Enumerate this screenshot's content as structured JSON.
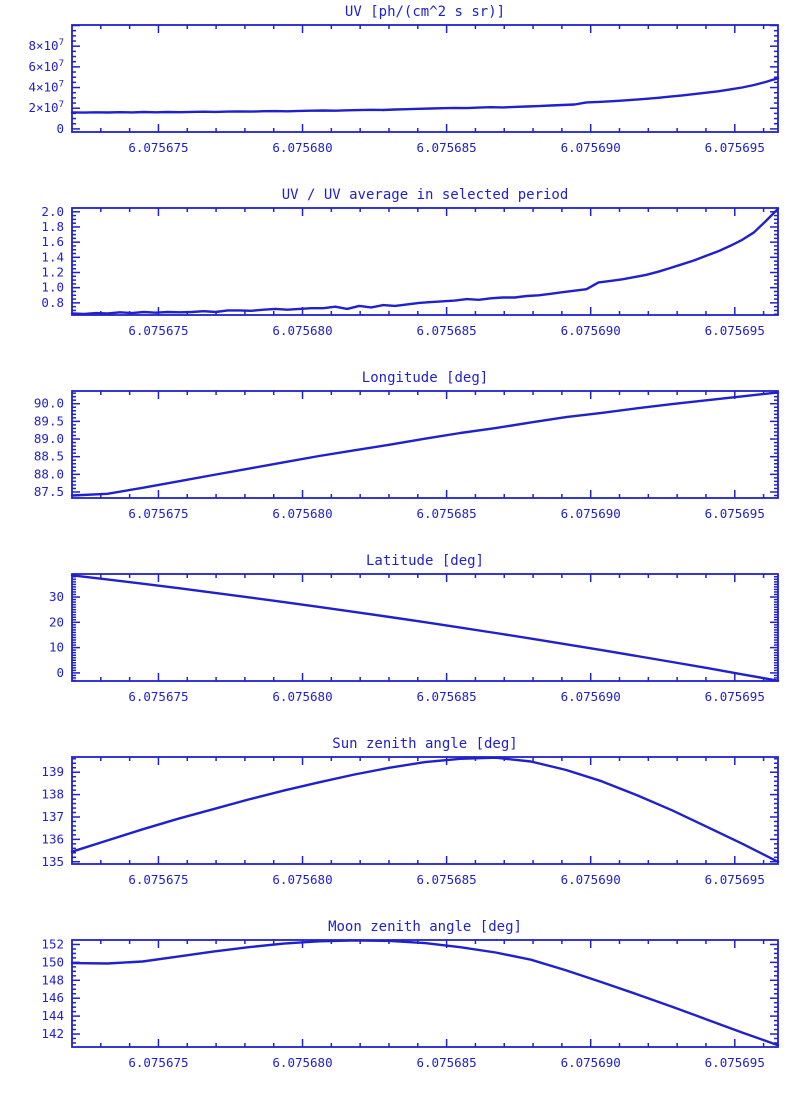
{
  "page": {
    "background": "#ffffff",
    "accent_color": "#2121cc"
  },
  "chart_data": [
    {
      "type": "line",
      "title": "UV [ph/(cm^2 s sr)]",
      "xlabel": "",
      "ylabel": "",
      "grid": false,
      "legend": "none",
      "xlim": [
        6.075672,
        6.0756965
      ],
      "ylim": [
        -3000000,
        100500000
      ],
      "x_ticks": {
        "values": [
          6.075675,
          6.07568,
          6.075685,
          6.07569,
          6.075695
        ],
        "labels": [
          "6.075675",
          "6.075680",
          "6.075685",
          "6.075690",
          "6.075695"
        ]
      },
      "x_minor_step": 1e-06,
      "y_ticks": [
        {
          "v": 0,
          "label": "0"
        },
        {
          "v": 20000000,
          "label": "2×10",
          "sup": "7"
        },
        {
          "v": 40000000,
          "label": "4×10",
          "sup": "7"
        },
        {
          "v": 60000000,
          "label": "6×10",
          "sup": "7"
        },
        {
          "v": 80000000,
          "label": "8×10",
          "sup": "7"
        },
        {
          "v": 100000000,
          "label": ""
        }
      ],
      "y_minor_step": 5000000,
      "line_color": "#2121cc",
      "y_scale": 10000000,
      "y_values": [
        1.6,
        1.58,
        1.61,
        1.59,
        1.62,
        1.6,
        1.63,
        1.61,
        1.63,
        1.62,
        1.64,
        1.66,
        1.64,
        1.67,
        1.69,
        1.67,
        1.71,
        1.72,
        1.7,
        1.74,
        1.76,
        1.78,
        1.76,
        1.8,
        1.82,
        1.85,
        1.83,
        1.88,
        1.91,
        1.94,
        1.97,
        2.0,
        2.03,
        2.01,
        2.06,
        2.1,
        2.08,
        2.13,
        2.17,
        2.21,
        2.26,
        2.31,
        2.36,
        2.56,
        2.61,
        2.67,
        2.74,
        2.82,
        2.91,
        3.01,
        3.12,
        3.24,
        3.37,
        3.5,
        3.64,
        3.82,
        4.0,
        4.25,
        4.55,
        4.9
      ]
    },
    {
      "type": "line",
      "title": "UV / UV average in selected period",
      "xlabel": "",
      "ylabel": "",
      "grid": false,
      "legend": "none",
      "xlim": [
        6.075672,
        6.0756965
      ],
      "ylim": [
        0.64,
        2.05
      ],
      "x_ticks": {
        "values": [
          6.075675,
          6.07568,
          6.075685,
          6.07569,
          6.075695
        ],
        "labels": [
          "6.075675",
          "6.075680",
          "6.075685",
          "6.075690",
          "6.075695"
        ]
      },
      "x_minor_step": 1e-06,
      "y_ticks": [
        {
          "v": 0.8,
          "label": "0.8"
        },
        {
          "v": 1.0,
          "label": "1.0"
        },
        {
          "v": 1.2,
          "label": "1.2"
        },
        {
          "v": 1.4,
          "label": "1.4"
        },
        {
          "v": 1.6,
          "label": "1.6"
        },
        {
          "v": 1.8,
          "label": "1.8"
        },
        {
          "v": 2.0,
          "label": "2.0"
        }
      ],
      "y_minor_step": 0.05,
      "line_color": "#2121cc",
      "y_scale": 1,
      "y_values": [
        0.66,
        0.655,
        0.665,
        0.66,
        0.675,
        0.665,
        0.68,
        0.67,
        0.68,
        0.675,
        0.68,
        0.69,
        0.68,
        0.7,
        0.7,
        0.695,
        0.71,
        0.72,
        0.71,
        0.72,
        0.73,
        0.73,
        0.75,
        0.72,
        0.76,
        0.74,
        0.77,
        0.76,
        0.78,
        0.8,
        0.81,
        0.82,
        0.83,
        0.85,
        0.84,
        0.86,
        0.87,
        0.87,
        0.89,
        0.9,
        0.92,
        0.94,
        0.96,
        0.98,
        1.07,
        1.09,
        1.11,
        1.14,
        1.17,
        1.21,
        1.26,
        1.31,
        1.36,
        1.42,
        1.48,
        1.55,
        1.63,
        1.73,
        1.88,
        2.04
      ]
    },
    {
      "type": "line",
      "title": "Longitude [deg]",
      "xlabel": "",
      "ylabel": "",
      "grid": false,
      "legend": "none",
      "xlim": [
        6.075672,
        6.0756965
      ],
      "ylim": [
        87.33,
        90.36
      ],
      "x_ticks": {
        "values": [
          6.075675,
          6.07568,
          6.075685,
          6.07569,
          6.075695
        ],
        "labels": [
          "6.075675",
          "6.075680",
          "6.075685",
          "6.075690",
          "6.075695"
        ]
      },
      "x_minor_step": 1e-06,
      "y_ticks": [
        {
          "v": 87.5,
          "label": "87.5"
        },
        {
          "v": 88.0,
          "label": "88.0"
        },
        {
          "v": 88.5,
          "label": "88.5"
        },
        {
          "v": 89.0,
          "label": "89.0"
        },
        {
          "v": 89.5,
          "label": "89.5"
        },
        {
          "v": 90.0,
          "label": "90.0"
        }
      ],
      "y_minor_step": 0.1,
      "line_color": "#2121cc",
      "y_scale": 1,
      "y_values": [
        87.4,
        87.45,
        87.62,
        87.8,
        87.98,
        88.16,
        88.34,
        88.52,
        88.68,
        88.84,
        89.01,
        89.17,
        89.31,
        89.47,
        89.62,
        89.74,
        89.87,
        89.99,
        90.1,
        90.21,
        90.32
      ]
    },
    {
      "type": "line",
      "title": "Latitude [deg]",
      "xlabel": "",
      "ylabel": "",
      "grid": false,
      "legend": "none",
      "xlim": [
        6.075672,
        6.0756965
      ],
      "ylim": [
        -3.2,
        39.1
      ],
      "x_ticks": {
        "values": [
          6.075675,
          6.07568,
          6.075685,
          6.07569,
          6.075695
        ],
        "labels": [
          "6.075675",
          "6.075680",
          "6.075685",
          "6.075690",
          "6.075695"
        ]
      },
      "x_minor_step": 1e-06,
      "y_ticks": [
        {
          "v": 0,
          "label": "0"
        },
        {
          "v": 10,
          "label": "10"
        },
        {
          "v": 20,
          "label": "20"
        },
        {
          "v": 30,
          "label": "30"
        }
      ],
      "y_minor_step": 1,
      "line_color": "#2121cc",
      "y_scale": 1,
      "y_values": [
        38.6,
        36.95,
        35.25,
        33.51,
        31.72,
        29.88,
        28.0,
        26.08,
        24.1,
        22.09,
        20.03,
        17.92,
        15.76,
        13.57,
        11.32,
        9.03,
        6.7,
        4.31,
        1.89,
        -0.58,
        -3.1
      ]
    },
    {
      "type": "line",
      "title": "Sun zenith angle [deg]",
      "xlabel": "",
      "ylabel": "",
      "grid": false,
      "legend": "none",
      "xlim": [
        6.075672,
        6.0756965
      ],
      "ylim": [
        134.9,
        139.68
      ],
      "x_ticks": {
        "values": [
          6.075675,
          6.07568,
          6.075685,
          6.07569,
          6.075695
        ],
        "labels": [
          "6.075675",
          "6.075680",
          "6.075685",
          "6.075690",
          "6.075695"
        ]
      },
      "x_minor_step": 1e-06,
      "y_ticks": [
        {
          "v": 135,
          "label": "135"
        },
        {
          "v": 136,
          "label": "136"
        },
        {
          "v": 137,
          "label": "137"
        },
        {
          "v": 138,
          "label": "138"
        },
        {
          "v": 139,
          "label": "139"
        }
      ],
      "y_minor_step": 0.2,
      "line_color": "#2121cc",
      "y_scale": 1,
      "y_values": [
        135.45,
        135.95,
        136.45,
        136.92,
        137.35,
        137.78,
        138.18,
        138.55,
        138.9,
        139.2,
        139.45,
        139.6,
        139.65,
        139.48,
        139.1,
        138.6,
        137.98,
        137.3,
        136.55,
        135.8,
        135.0
      ]
    },
    {
      "type": "line",
      "title": "Moon zenith angle [deg]",
      "xlabel": "",
      "ylabel": "",
      "grid": false,
      "legend": "none",
      "xlim": [
        6.075672,
        6.0756965
      ],
      "ylim": [
        140.55,
        152.5
      ],
      "x_ticks": {
        "values": [
          6.075675,
          6.07568,
          6.075685,
          6.07569,
          6.075695
        ],
        "labels": [
          "6.075675",
          "6.075680",
          "6.075685",
          "6.075690",
          "6.075695"
        ]
      },
      "x_minor_step": 1e-06,
      "y_ticks": [
        {
          "v": 142,
          "label": "142"
        },
        {
          "v": 144,
          "label": "144"
        },
        {
          "v": 146,
          "label": "146"
        },
        {
          "v": 148,
          "label": "148"
        },
        {
          "v": 150,
          "label": "150"
        },
        {
          "v": 152,
          "label": "152"
        }
      ],
      "y_minor_step": 0.5,
      "line_color": "#2121cc",
      "y_scale": 1,
      "y_values": [
        149.92,
        149.88,
        150.1,
        150.65,
        151.2,
        151.7,
        152.1,
        152.35,
        152.45,
        152.4,
        152.15,
        151.7,
        151.1,
        150.3,
        149.1,
        147.8,
        146.45,
        145.05,
        143.6,
        142.15,
        140.75
      ]
    }
  ]
}
